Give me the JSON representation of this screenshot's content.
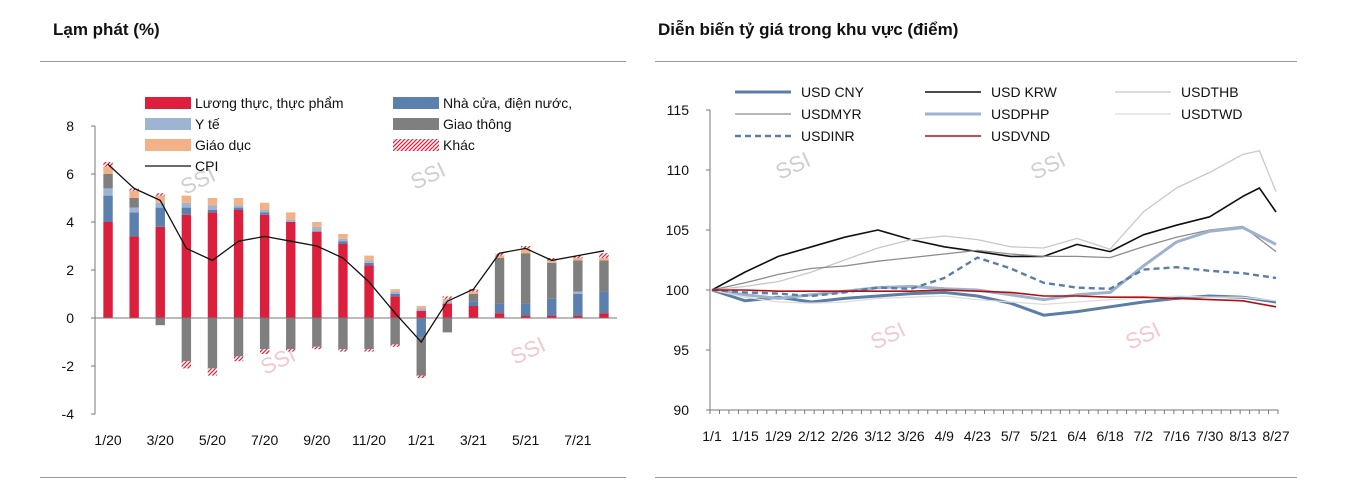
{
  "left_title": "Lạm phát (%)",
  "right_title": "Diễn biến tỷ giá trong khu vực (điểm)",
  "watermark": "SSI",
  "colors": {
    "food": "#dc1f3c",
    "housing": "#5b80ad",
    "health": "#9db5d3",
    "transport": "#7f7f7f",
    "education": "#f2b186",
    "other": "#d2283c",
    "cpi": "#111111",
    "red_line": "#b01010"
  },
  "chart_data": [
    {
      "type": "bar",
      "stacked": true,
      "title": "Lạm phát (%)",
      "x_tick_labels": [
        "1/20",
        "3/20",
        "5/20",
        "7/20",
        "9/20",
        "11/20",
        "1/21",
        "3/21",
        "5/21",
        "7/21"
      ],
      "y_ticks": [
        "8",
        "6",
        "4",
        "2",
        "0",
        "-2",
        "-4"
      ],
      "ylim": [
        -4,
        8
      ],
      "months": 20,
      "legend": [
        {
          "key": "food",
          "label": "Lương thực, thực phẩm"
        },
        {
          "key": "housing",
          "label": "Nhà cửa, điện nước,"
        },
        {
          "key": "health",
          "label": "Y tế"
        },
        {
          "key": "transport",
          "label": "Giao thông"
        },
        {
          "key": "education",
          "label": "Giáo dục"
        },
        {
          "key": "other",
          "label": "Khác"
        },
        {
          "key": "cpi",
          "label": "CPI"
        }
      ],
      "series": [
        {
          "name": "Lương thực, thực phẩm",
          "key": "food",
          "values": [
            4.0,
            3.4,
            3.8,
            4.3,
            4.4,
            4.5,
            4.3,
            4.0,
            3.6,
            3.1,
            2.2,
            0.9,
            0.3,
            0.6,
            0.5,
            0.2,
            0.1,
            0.1,
            0.1,
            0.2
          ]
        },
        {
          "name": "Nhà cửa, điện nước,",
          "key": "housing",
          "values": [
            1.1,
            1.0,
            0.8,
            0.3,
            0.1,
            0.1,
            0.1,
            0.0,
            0.0,
            0.1,
            0.1,
            0.1,
            -0.8,
            0.0,
            0.2,
            0.4,
            0.5,
            0.7,
            0.9,
            0.9
          ]
        },
        {
          "name": "Y tế",
          "key": "health",
          "values": [
            0.3,
            0.2,
            0.2,
            0.2,
            0.2,
            0.1,
            0.1,
            0.1,
            0.2,
            0.1,
            0.1,
            0.1,
            0.1,
            0.1,
            0.0,
            0.0,
            0.0,
            0.0,
            0.1,
            0.0
          ]
        },
        {
          "name": "Giao thông",
          "key": "transport",
          "values": [
            0.6,
            0.4,
            -0.3,
            -1.8,
            -2.1,
            -1.6,
            -1.3,
            -1.3,
            -1.2,
            -1.3,
            -1.3,
            -1.1,
            -1.6,
            -0.6,
            0.3,
            1.9,
            2.1,
            1.5,
            1.3,
            1.3
          ]
        },
        {
          "name": "Giáo dục",
          "key": "education",
          "values": [
            0.3,
            0.3,
            0.3,
            0.3,
            0.3,
            0.3,
            0.3,
            0.3,
            0.2,
            0.2,
            0.2,
            0.1,
            0.1,
            0.1,
            0.1,
            0.1,
            0.2,
            0.1,
            0.1,
            0.1
          ]
        },
        {
          "name": "Khác",
          "key": "other",
          "values": [
            0.2,
            0.1,
            0.1,
            -0.3,
            -0.3,
            -0.2,
            -0.2,
            -0.1,
            -0.1,
            -0.1,
            -0.1,
            -0.1,
            -0.1,
            0.1,
            0.1,
            0.1,
            0.1,
            0.1,
            0.1,
            0.2
          ]
        },
        {
          "name": "CPI",
          "key": "cpi",
          "type": "line",
          "values": [
            6.4,
            5.4,
            4.9,
            2.9,
            2.4,
            3.2,
            3.4,
            3.2,
            3.0,
            2.5,
            1.5,
            0.2,
            -1.0,
            0.7,
            1.2,
            2.7,
            2.9,
            2.4,
            2.6,
            2.8
          ]
        }
      ]
    },
    {
      "type": "line",
      "title": "Diễn biến tỷ giá trong khu vực (điểm)",
      "x_tick_labels": [
        "1/1",
        "1/15",
        "1/29",
        "2/12",
        "2/26",
        "3/12",
        "3/26",
        "4/9",
        "4/23",
        "5/7",
        "5/21",
        "6/4",
        "6/18",
        "7/2",
        "7/16",
        "7/30",
        "8/13",
        "8/27"
      ],
      "y_ticks": [
        "115",
        "110",
        "105",
        "100",
        "95",
        "90"
      ],
      "ylim": [
        90,
        115
      ],
      "x_index_range": [
        0,
        34
      ],
      "series": [
        {
          "name": "USD CNY",
          "color": "#5b7ea6",
          "width": 3,
          "dash": "",
          "x": [
            0,
            2,
            4,
            6,
            8,
            10,
            12,
            14,
            16,
            18,
            20,
            22,
            24,
            26,
            28,
            30,
            32,
            34
          ],
          "y": [
            100,
            99.1,
            99.4,
            99.0,
            99.3,
            99.5,
            99.7,
            99.8,
            99.5,
            98.9,
            97.9,
            98.2,
            98.6,
            99.0,
            99.3,
            99.5,
            99.4,
            99.0
          ]
        },
        {
          "name": "USD KRW",
          "color": "#111111",
          "width": 1.6,
          "dash": "",
          "x": [
            0,
            2,
            4,
            6,
            8,
            10,
            12,
            14,
            16,
            18,
            20,
            22,
            24,
            26,
            28,
            30,
            32,
            33,
            34
          ],
          "y": [
            100,
            101.5,
            102.8,
            103.6,
            104.4,
            105.0,
            104.2,
            103.6,
            103.2,
            102.8,
            102.8,
            103.8,
            103.2,
            104.6,
            105.4,
            106.1,
            107.8,
            108.5,
            106.5
          ]
        },
        {
          "name": "USDTHB",
          "color": "#c8c8c8",
          "width": 1.3,
          "dash": "",
          "x": [
            0,
            2,
            4,
            6,
            8,
            10,
            12,
            14,
            16,
            18,
            20,
            22,
            24,
            26,
            28,
            30,
            32,
            33,
            34
          ],
          "y": [
            100,
            100.3,
            100.7,
            101.5,
            102.5,
            103.5,
            104.2,
            104.5,
            104.2,
            103.6,
            103.5,
            104.3,
            103.4,
            106.5,
            108.5,
            109.8,
            111.3,
            111.6,
            108.2
          ]
        },
        {
          "name": "USDMYR",
          "color": "#8c8c8c",
          "width": 1.3,
          "dash": "",
          "x": [
            0,
            2,
            4,
            6,
            8,
            10,
            12,
            14,
            16,
            18,
            20,
            22,
            24,
            26,
            28,
            30,
            32,
            34
          ],
          "y": [
            100,
            100.6,
            101.3,
            101.8,
            102.0,
            102.4,
            102.7,
            103.0,
            103.3,
            103.0,
            102.8,
            102.8,
            102.7,
            103.6,
            104.4,
            105.0,
            105.3,
            103.2
          ]
        },
        {
          "name": "USDPHP",
          "color": "#9fb2cc",
          "width": 3,
          "dash": "",
          "x": [
            0,
            2,
            4,
            6,
            8,
            10,
            12,
            14,
            16,
            18,
            20,
            22,
            24,
            26,
            28,
            30,
            32,
            34
          ],
          "y": [
            100,
            99.6,
            99.3,
            99.6,
            99.9,
            100.2,
            100.3,
            100.1,
            100.0,
            99.6,
            99.2,
            99.6,
            99.8,
            102.0,
            104.0,
            104.9,
            105.2,
            103.8
          ]
        },
        {
          "name": "USDTWD",
          "color": "#dcdcdc",
          "width": 1.3,
          "dash": "",
          "x": [
            0,
            2,
            4,
            6,
            8,
            10,
            12,
            14,
            16,
            18,
            20,
            22,
            24,
            26,
            28,
            30,
            32,
            34
          ],
          "y": [
            100,
            99.4,
            99.0,
            98.9,
            99.0,
            99.3,
            99.4,
            99.5,
            99.2,
            99.0,
            98.8,
            99.0,
            99.2,
            99.3,
            99.5,
            99.4,
            99.4,
            99.1
          ]
        },
        {
          "name": "USDINR",
          "color": "#5b7ea6",
          "width": 2.4,
          "dash": "6 4",
          "x": [
            0,
            2,
            4,
            6,
            8,
            10,
            12,
            14,
            16,
            18,
            20,
            22,
            24,
            26,
            28,
            30,
            32,
            34
          ],
          "y": [
            100,
            99.8,
            99.7,
            99.5,
            99.8,
            100.2,
            100.1,
            101.0,
            102.7,
            101.8,
            100.6,
            100.2,
            100.1,
            101.7,
            101.9,
            101.6,
            101.4,
            101.0
          ]
        },
        {
          "name": "USDVND",
          "color": "#b01010",
          "width": 1.6,
          "dash": "",
          "x": [
            0,
            2,
            4,
            6,
            8,
            10,
            12,
            14,
            16,
            18,
            20,
            22,
            24,
            26,
            28,
            30,
            32,
            34
          ],
          "y": [
            100,
            100.0,
            99.9,
            99.9,
            99.9,
            99.9,
            99.9,
            100.0,
            99.9,
            99.8,
            99.5,
            99.5,
            99.4,
            99.4,
            99.3,
            99.2,
            99.1,
            98.6
          ]
        }
      ]
    }
  ]
}
